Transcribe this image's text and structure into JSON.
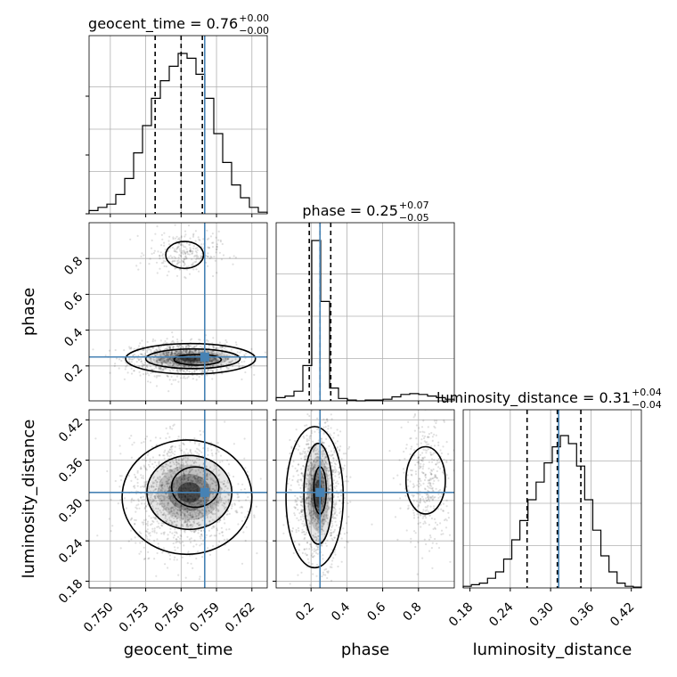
{
  "chart_data": {
    "type": "corner",
    "parameters": [
      {
        "name": "geocent_time",
        "axis_label": "geocent_time",
        "title": "geocent_time = 0.76",
        "title_plus": "+0.00",
        "title_minus": "−0.00",
        "range": [
          0.7482,
          0.7633
        ],
        "ticks": [
          0.75,
          0.753,
          0.756,
          0.759,
          0.762
        ],
        "tick_labels": [
          "0.750",
          "0.753",
          "0.756",
          "0.759",
          "0.762"
        ],
        "quantiles": [
          0.7538,
          0.756,
          0.7578
        ],
        "truth": 0.758,
        "hist": [
          0.02,
          0.04,
          0.06,
          0.12,
          0.22,
          0.38,
          0.55,
          0.72,
          0.83,
          0.92,
          1.0,
          0.97,
          0.87,
          0.72,
          0.5,
          0.32,
          0.18,
          0.1,
          0.04,
          0.01
        ]
      },
      {
        "name": "phase",
        "axis_label": "phase",
        "title": "phase = 0.25",
        "title_plus": "+0.07",
        "title_minus": "−0.05",
        "range": [
          0.005,
          1.0
        ],
        "ticks": [
          0.2,
          0.4,
          0.6,
          0.8
        ],
        "tick_labels": [
          "0.2",
          "0.4",
          "0.6",
          "0.8"
        ],
        "quantiles": [
          0.19,
          0.25,
          0.31
        ],
        "truth": 0.25,
        "hist": [
          0.02,
          0.03,
          0.06,
          0.22,
          1.0,
          0.62,
          0.08,
          0.015,
          0.005,
          0.0,
          0.005,
          0.005,
          0.01,
          0.025,
          0.04,
          0.045,
          0.04,
          0.03,
          0.02,
          0.01
        ]
      },
      {
        "name": "luminosity_distance",
        "axis_label": "luminosity_distance",
        "title": "luminosity_distance = 0.31",
        "title_plus": "+0.04",
        "title_minus": "−0.04",
        "range": [
          0.17,
          0.435
        ],
        "ticks": [
          0.18,
          0.24,
          0.3,
          0.36,
          0.42
        ],
        "tick_labels": [
          "0.18",
          "0.24",
          "0.30",
          "0.36",
          "0.42"
        ],
        "quantiles": [
          0.265,
          0.31,
          0.345
        ],
        "truth": 0.312,
        "hist": [
          0.01,
          0.02,
          0.03,
          0.06,
          0.1,
          0.18,
          0.3,
          0.42,
          0.55,
          0.66,
          0.78,
          0.88,
          0.95,
          0.9,
          0.76,
          0.55,
          0.36,
          0.2,
          0.1,
          0.03,
          0.01,
          0.005
        ]
      }
    ],
    "truth_color": "#4682b4",
    "grid": true,
    "pairs": [
      {
        "x": "geocent_time",
        "y": "phase",
        "cloud": [
          {
            "cx": 0.7562,
            "cy": 0.24,
            "sx": 0.0022,
            "sy": 0.045,
            "n": 1300
          },
          {
            "cx": 0.7562,
            "cy": 0.83,
            "sx": 0.0015,
            "sy": 0.06,
            "n": 280
          }
        ],
        "contours": [
          {
            "cx": 0.7568,
            "cy": 0.24,
            "rx": 0.0055,
            "ry": 0.085
          },
          {
            "cx": 0.757,
            "cy": 0.24,
            "rx": 0.004,
            "ry": 0.055
          },
          {
            "cx": 0.7574,
            "cy": 0.235,
            "rx": 0.002,
            "ry": 0.03
          },
          {
            "cx": 0.7563,
            "cy": 0.82,
            "rx": 0.0016,
            "ry": 0.075
          }
        ]
      },
      {
        "x": "geocent_time",
        "y": "luminosity_distance",
        "cloud": [
          {
            "cx": 0.7562,
            "cy": 0.308,
            "sx": 0.0022,
            "sy": 0.04,
            "n": 1600
          }
        ],
        "contours": [
          {
            "cx": 0.7565,
            "cy": 0.305,
            "rx": 0.0055,
            "ry": 0.085
          },
          {
            "cx": 0.7567,
            "cy": 0.312,
            "rx": 0.0036,
            "ry": 0.055
          },
          {
            "cx": 0.7572,
            "cy": 0.32,
            "rx": 0.002,
            "ry": 0.03
          }
        ]
      },
      {
        "x": "phase",
        "y": "luminosity_distance",
        "cloud": [
          {
            "cx": 0.24,
            "cy": 0.31,
            "sx": 0.07,
            "sy": 0.05,
            "n": 1100
          },
          {
            "cx": 0.85,
            "cy": 0.33,
            "sx": 0.07,
            "sy": 0.05,
            "n": 380
          }
        ],
        "contours": [
          {
            "cx": 0.22,
            "cy": 0.305,
            "rx": 0.16,
            "ry": 0.105
          },
          {
            "cx": 0.24,
            "cy": 0.31,
            "rx": 0.08,
            "ry": 0.075
          },
          {
            "cx": 0.25,
            "cy": 0.315,
            "rx": 0.035,
            "ry": 0.035
          },
          {
            "cx": 0.84,
            "cy": 0.33,
            "rx": 0.11,
            "ry": 0.05
          }
        ]
      }
    ]
  }
}
